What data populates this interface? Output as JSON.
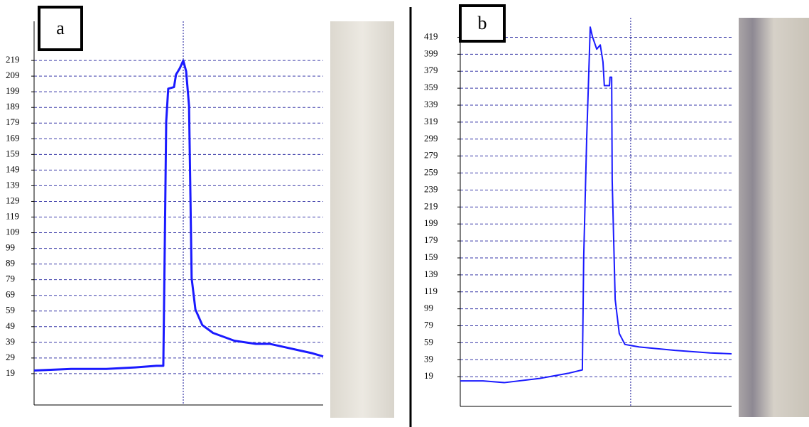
{
  "chart_data": [
    {
      "type": "line",
      "panel_label": "a",
      "color": "#1a1aff",
      "grid": true,
      "vline_x": 51.6,
      "x": [
        0,
        12.8,
        25,
        35,
        42.3,
        44.7,
        45.2,
        45.7,
        46.4,
        48.4,
        49.1,
        50.4,
        51.6,
        52.6,
        53.6,
        54.1,
        54.5,
        55.8,
        58.2,
        61.9,
        69.3,
        76.7,
        81.6,
        86.5,
        91.4,
        96.3,
        100
      ],
      "values": [
        21,
        22,
        22,
        23,
        24,
        24,
        100,
        180,
        201,
        202,
        210,
        214,
        219,
        212,
        190,
        130,
        80,
        60,
        50,
        45,
        40,
        38,
        38,
        36,
        34,
        32,
        30
      ],
      "xlim": [
        0,
        100
      ],
      "ylim": [
        -1,
        244
      ],
      "yticks": [
        19,
        29,
        39,
        49,
        59,
        69,
        79,
        89,
        99,
        109,
        119,
        129,
        139,
        149,
        159,
        169,
        179,
        189,
        199,
        209,
        219
      ]
    },
    {
      "type": "line",
      "panel_label": "b",
      "color": "#1a1aff",
      "grid": true,
      "vline_x": 62.8,
      "x": [
        0,
        8.4,
        16.2,
        29.3,
        39.8,
        45.0,
        45.5,
        46.6,
        47.4,
        47.9,
        48.7,
        50.3,
        51.6,
        52.6,
        53.1,
        55.0,
        55.2,
        55.8,
        56.0,
        57.1,
        58.6,
        60.7,
        66.0,
        79.1,
        92.1,
        100
      ],
      "values": [
        14,
        14,
        12,
        17,
        23,
        27,
        160,
        300,
        380,
        431,
        420,
        405,
        410,
        390,
        362,
        362,
        372,
        372,
        250,
        110,
        70,
        57,
        54,
        50,
        47,
        46
      ],
      "xlim": [
        0,
        100
      ],
      "ylim": [
        -16,
        442
      ],
      "yticks": [
        19,
        39,
        59,
        79,
        99,
        119,
        139,
        159,
        179,
        199,
        219,
        239,
        259,
        279,
        299,
        319,
        339,
        359,
        379,
        399,
        419
      ]
    }
  ]
}
